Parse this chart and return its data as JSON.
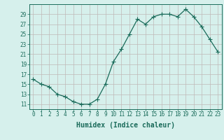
{
  "x": [
    0,
    1,
    2,
    3,
    4,
    5,
    6,
    7,
    8,
    9,
    10,
    11,
    12,
    13,
    14,
    15,
    16,
    17,
    18,
    19,
    20,
    21,
    22,
    23
  ],
  "y": [
    16,
    15,
    14.5,
    13,
    12.5,
    11.5,
    11,
    11,
    12,
    15,
    19.5,
    22,
    25,
    28,
    27,
    28.5,
    29,
    29,
    28.5,
    30,
    28.5,
    26.5,
    24,
    21.5
  ],
  "line_color": "#1a6b5a",
  "marker": "+",
  "marker_size": 4,
  "bg_color": "#d6f0ec",
  "grid_color": "#c0b8b8",
  "xlabel": "Humidex (Indice chaleur)",
  "xlim": [
    -0.5,
    23.5
  ],
  "ylim": [
    10,
    31
  ],
  "yticks": [
    11,
    13,
    15,
    17,
    19,
    21,
    23,
    25,
    27,
    29
  ],
  "xticks": [
    0,
    1,
    2,
    3,
    4,
    5,
    6,
    7,
    8,
    9,
    10,
    11,
    12,
    13,
    14,
    15,
    16,
    17,
    18,
    19,
    20,
    21,
    22,
    23
  ],
  "tick_label_fontsize": 5.5,
  "xlabel_fontsize": 7,
  "linewidth": 0.9
}
